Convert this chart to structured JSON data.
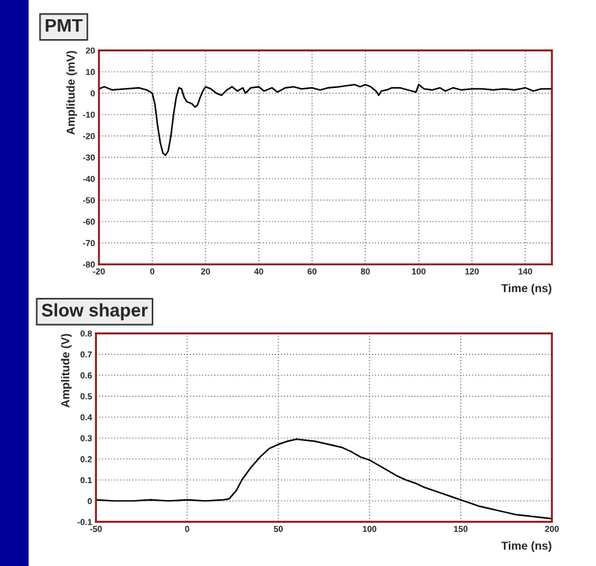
{
  "chart_data": [
    {
      "type": "line",
      "title": "PMT",
      "xlabel": "Time (ns)",
      "ylabel": "Amplitude (mV)",
      "color": "#000000",
      "grid": true,
      "x": [
        -20,
        -18,
        -15,
        -10,
        -5,
        -2,
        0,
        1,
        2,
        3,
        4,
        5,
        6,
        7,
        8,
        9,
        10,
        11,
        12,
        13,
        15,
        16,
        17,
        18,
        19,
        20,
        22,
        24,
        26,
        28,
        30,
        32,
        34,
        35,
        37,
        40,
        42,
        45,
        47,
        50,
        53,
        56,
        60,
        63,
        66,
        70,
        73,
        76,
        78,
        80,
        82,
        84,
        85,
        86,
        88,
        90,
        93,
        96,
        99,
        100,
        102,
        105,
        108,
        110,
        113,
        116,
        120,
        124,
        128,
        132,
        136,
        140,
        143,
        146,
        150
      ],
      "values": [
        2,
        3,
        1.5,
        2,
        2.5,
        1.5,
        0,
        -5,
        -15,
        -23,
        -28,
        -29,
        -27,
        -20,
        -10,
        -2,
        2.5,
        2,
        -2,
        -4,
        -5,
        -6.5,
        -5.5,
        -2,
        1,
        3,
        2,
        0,
        -1,
        1.5,
        3,
        1,
        2.5,
        0,
        2.5,
        3,
        1,
        2.5,
        0.5,
        2.5,
        3,
        2,
        2.5,
        1.5,
        2.5,
        3,
        3.5,
        4,
        3,
        4,
        3,
        1,
        -1,
        1,
        1.5,
        2.5,
        2.5,
        1.5,
        0.5,
        4,
        2,
        1.5,
        2.5,
        1,
        2.5,
        1.5,
        2,
        2,
        1.5,
        2,
        1.5,
        2.5,
        1,
        2,
        2
      ],
      "xlim": [
        -20,
        150
      ],
      "xticks": [
        -20,
        0,
        20,
        40,
        60,
        80,
        100,
        120,
        140
      ],
      "ylim": [
        -80,
        20
      ],
      "yticks": [
        -80,
        -70,
        -60,
        -50,
        -40,
        -30,
        -20,
        -10,
        0,
        10,
        20
      ]
    },
    {
      "type": "line",
      "title": "Slow shaper",
      "xlabel": "Time (ns)",
      "ylabel": "Amplitude (V)",
      "color": "#000000",
      "grid": true,
      "x": [
        -50,
        -40,
        -30,
        -20,
        -10,
        0,
        10,
        20,
        23,
        27,
        30,
        35,
        40,
        45,
        50,
        55,
        60,
        65,
        70,
        75,
        80,
        85,
        90,
        95,
        100,
        105,
        110,
        115,
        120,
        125,
        130,
        135,
        140,
        145,
        150,
        155,
        160,
        165,
        170,
        175,
        180,
        190,
        200
      ],
      "values": [
        0.005,
        0.0,
        0.0,
        0.005,
        0.0,
        0.005,
        0.0,
        0.005,
        0.01,
        0.05,
        0.1,
        0.16,
        0.21,
        0.25,
        0.27,
        0.285,
        0.295,
        0.29,
        0.285,
        0.275,
        0.265,
        0.255,
        0.235,
        0.21,
        0.195,
        0.17,
        0.145,
        0.12,
        0.1,
        0.085,
        0.065,
        0.05,
        0.035,
        0.02,
        0.005,
        -0.01,
        -0.025,
        -0.035,
        -0.045,
        -0.055,
        -0.065,
        -0.075,
        -0.085
      ],
      "xlim": [
        -50,
        200
      ],
      "xticks": [
        -50,
        0,
        50,
        100,
        150,
        200
      ],
      "ylim": [
        -0.1,
        0.8
      ],
      "yticks": [
        -0.1,
        0,
        0.1,
        0.2,
        0.3,
        0.4,
        0.5,
        0.6,
        0.7,
        0.8
      ]
    }
  ]
}
